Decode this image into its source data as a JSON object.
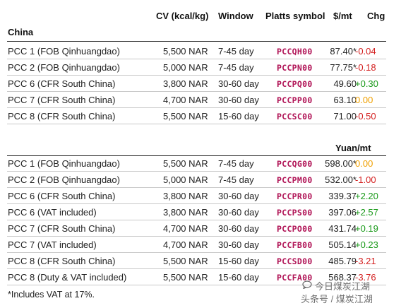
{
  "header": {
    "cv": "CV (kcal/kg)",
    "window": "Window",
    "symbol": "Platts symbol",
    "usd": "$/mt",
    "chg": "Chg"
  },
  "region": "China",
  "usd_rows": [
    {
      "name": "PCC 1 (FOB Qinhuangdao)",
      "cv": "5,500 NAR",
      "window": "7-45 day",
      "symbol": "PCCQH00",
      "price": "87.40*",
      "chg": "-0.04",
      "dir": "neg"
    },
    {
      "name": "PCC 2 (FOB Qinhuangdao)",
      "cv": "5,000 NAR",
      "window": "7-45 day",
      "symbol": "PCCPN00",
      "price": "77.75*",
      "chg": "-0.18",
      "dir": "neg"
    },
    {
      "name": "PCC 6 (CFR South China)",
      "cv": "3,800 NAR",
      "window": "30-60 day",
      "symbol": "PCCPQ00",
      "price": "49.60",
      "chg": "+0.30",
      "dir": "pos"
    },
    {
      "name": "PCC 7 (CFR South China)",
      "cv": "4,700 NAR",
      "window": "30-60 day",
      "symbol": "PCCPP00",
      "price": "63.10",
      "chg": "0.00",
      "dir": "zero"
    },
    {
      "name": "PCC 8 (CFR South China)",
      "cv": "5,500 NAR",
      "window": "15-60 day",
      "symbol": "PCCSC00",
      "price": "71.00",
      "chg": "-0.50",
      "dir": "neg"
    }
  ],
  "yuan_header": "Yuan/mt",
  "yuan_rows": [
    {
      "name": "PCC 1 (FOB Qinhuangdao)",
      "cv": "5,500 NAR",
      "window": "7-45 day",
      "symbol": "PCCQG00",
      "price": "598.00*",
      "chg": "0.00",
      "dir": "zero"
    },
    {
      "name": "PCC 2 (FOB Qinhuangdao)",
      "cv": "5,000 NAR",
      "window": "7-45 day",
      "symbol": "PCCPM00",
      "price": "532.00*",
      "chg": "-1.00",
      "dir": "neg"
    },
    {
      "name": "PCC 6 (CFR South China)",
      "cv": "3,800 NAR",
      "window": "30-60 day",
      "symbol": "PCCPR00",
      "price": "339.37",
      "chg": "+2.20",
      "dir": "pos"
    },
    {
      "name": "PCC 6 (VAT included)",
      "cv": "3,800 NAR",
      "window": "30-60 day",
      "symbol": "PCCPS00",
      "price": "397.06",
      "chg": "+2.57",
      "dir": "pos"
    },
    {
      "name": "PCC 7 (CFR South China)",
      "cv": "4,700 NAR",
      "window": "30-60 day",
      "symbol": "PCCPO00",
      "price": "431.74",
      "chg": "+0.19",
      "dir": "pos"
    },
    {
      "name": "PCC 7 (VAT included)",
      "cv": "4,700 NAR",
      "window": "30-60 day",
      "symbol": "PCCFB00",
      "price": "505.14",
      "chg": "+0.23",
      "dir": "pos"
    },
    {
      "name": "PCC 8 (CFR South China)",
      "cv": "5,500 NAR",
      "window": "15-60 day",
      "symbol": "PCCSD00",
      "price": "485.79",
      "chg": "-3.21",
      "dir": "neg"
    },
    {
      "name": "PCC 8 (Duty & VAT included)",
      "cv": "5,500 NAR",
      "window": "15-60 day",
      "symbol": "PCCFA00",
      "price": "568.37",
      "chg": "-3.76",
      "dir": "neg"
    }
  ],
  "footnote": "*Includes VAT at 17%.",
  "watermark": {
    "line1": "今日煤炭江湖",
    "line2": "头条号 / 煤炭江湖",
    "icon": "chat-bubble-icon"
  }
}
